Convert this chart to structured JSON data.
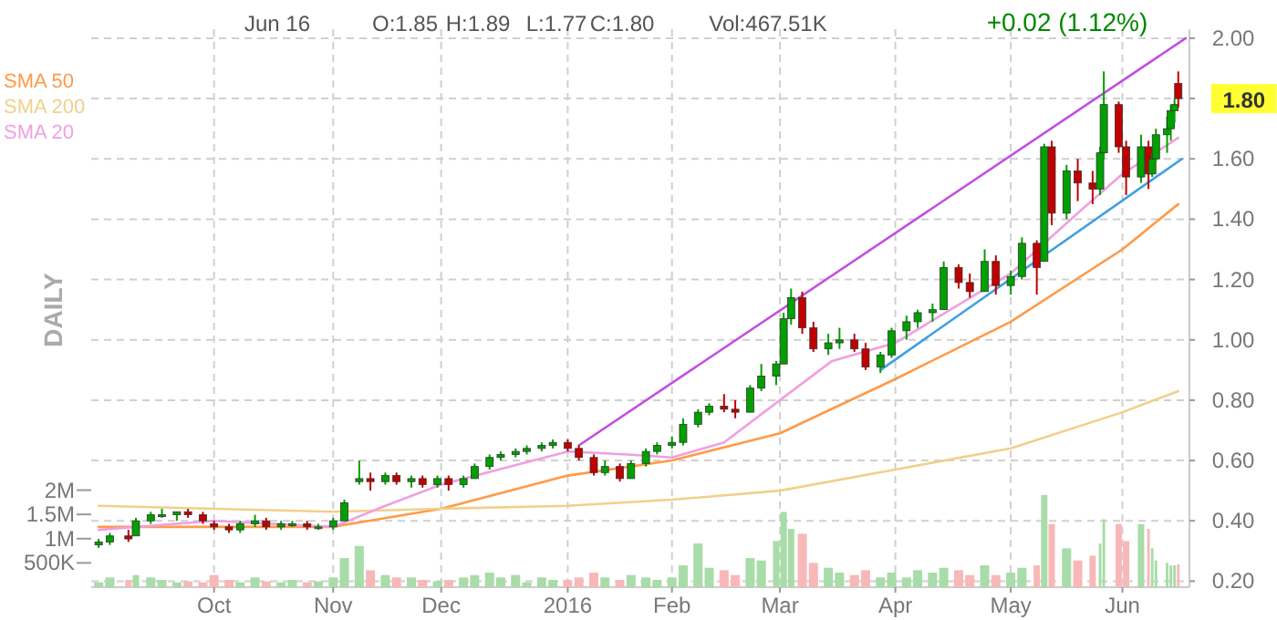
{
  "chart_data": {
    "type": "candlestick",
    "annotations": [
      "Jun 16",
      "O:1.85",
      "H:1.89",
      "L:1.77",
      "C:1.80",
      "Vol:467.51K",
      "+0.02 (1.12%)",
      "DAILY",
      {
        "text": "1.80",
        "x": "2016-06-16",
        "y": 1.8
      }
    ],
    "x": [
      "2015-08-31",
      "2015-09-03",
      "2015-09-08",
      "2015-09-10",
      "2015-09-14",
      "2015-09-17",
      "2015-09-21",
      "2015-09-24",
      "2015-09-28",
      "2015-10-01",
      "2015-10-05",
      "2015-10-08",
      "2015-10-12",
      "2015-10-15",
      "2015-10-19",
      "2015-10-22",
      "2015-10-26",
      "2015-10-29",
      "2015-11-02",
      "2015-11-05",
      "2015-11-09",
      "2015-11-12",
      "2015-11-16",
      "2015-11-19",
      "2015-11-23",
      "2015-11-26",
      "2015-11-30",
      "2015-12-03",
      "2015-12-07",
      "2015-12-10",
      "2015-12-14",
      "2015-12-17",
      "2015-12-21",
      "2015-12-24",
      "2015-12-28",
      "2015-12-31",
      "2016-01-04",
      "2016-01-07",
      "2016-01-11",
      "2016-01-14",
      "2016-01-18",
      "2016-01-21",
      "2016-01-25",
      "2016-01-28",
      "2016-02-01",
      "2016-02-04",
      "2016-02-08",
      "2016-02-11",
      "2016-02-15",
      "2016-02-18",
      "2016-02-22",
      "2016-02-25",
      "2016-02-29",
      "2016-03-02",
      "2016-03-04",
      "2016-03-07",
      "2016-03-10",
      "2016-03-14",
      "2016-03-17",
      "2016-03-21",
      "2016-03-24",
      "2016-03-28",
      "2016-03-31",
      "2016-04-04",
      "2016-04-07",
      "2016-04-11",
      "2016-04-14",
      "2016-04-18",
      "2016-04-21",
      "2016-04-25",
      "2016-04-28",
      "2016-05-02",
      "2016-05-05",
      "2016-05-09",
      "2016-05-11",
      "2016-05-13",
      "2016-05-17",
      "2016-05-20",
      "2016-05-24",
      "2016-05-26",
      "2016-05-27",
      "2016-05-31",
      "2016-06-02",
      "2016-06-06",
      "2016-06-08",
      "2016-06-09",
      "2016-06-10",
      "2016-06-13",
      "2016-06-14",
      "2016-06-15",
      "2016-06-16"
    ],
    "ohlc": [
      [
        0.32,
        0.34,
        0.31,
        0.33
      ],
      [
        0.33,
        0.36,
        0.32,
        0.35
      ],
      [
        0.35,
        0.37,
        0.33,
        0.34
      ],
      [
        0.35,
        0.41,
        0.35,
        0.4
      ],
      [
        0.4,
        0.43,
        0.39,
        0.42
      ],
      [
        0.42,
        0.44,
        0.41,
        0.42
      ],
      [
        0.42,
        0.43,
        0.4,
        0.43
      ],
      [
        0.43,
        0.44,
        0.41,
        0.42
      ],
      [
        0.42,
        0.43,
        0.39,
        0.4
      ],
      [
        0.39,
        0.4,
        0.37,
        0.38
      ],
      [
        0.38,
        0.39,
        0.36,
        0.37
      ],
      [
        0.37,
        0.4,
        0.36,
        0.39
      ],
      [
        0.39,
        0.42,
        0.38,
        0.4
      ],
      [
        0.4,
        0.41,
        0.37,
        0.38
      ],
      [
        0.38,
        0.4,
        0.37,
        0.39
      ],
      [
        0.39,
        0.4,
        0.38,
        0.39
      ],
      [
        0.39,
        0.4,
        0.37,
        0.38
      ],
      [
        0.38,
        0.39,
        0.37,
        0.38
      ],
      [
        0.38,
        0.41,
        0.37,
        0.4
      ],
      [
        0.4,
        0.47,
        0.4,
        0.46
      ],
      [
        0.53,
        0.6,
        0.52,
        0.54
      ],
      [
        0.54,
        0.56,
        0.5,
        0.53
      ],
      [
        0.53,
        0.56,
        0.52,
        0.55
      ],
      [
        0.55,
        0.56,
        0.52,
        0.53
      ],
      [
        0.53,
        0.55,
        0.51,
        0.54
      ],
      [
        0.54,
        0.55,
        0.51,
        0.52
      ],
      [
        0.52,
        0.55,
        0.51,
        0.54
      ],
      [
        0.54,
        0.55,
        0.5,
        0.52
      ],
      [
        0.52,
        0.55,
        0.51,
        0.54
      ],
      [
        0.54,
        0.59,
        0.54,
        0.58
      ],
      [
        0.58,
        0.62,
        0.57,
        0.61
      ],
      [
        0.61,
        0.63,
        0.6,
        0.62
      ],
      [
        0.62,
        0.64,
        0.61,
        0.63
      ],
      [
        0.63,
        0.65,
        0.62,
        0.64
      ],
      [
        0.64,
        0.66,
        0.63,
        0.65
      ],
      [
        0.65,
        0.67,
        0.64,
        0.66
      ],
      [
        0.66,
        0.67,
        0.63,
        0.64
      ],
      [
        0.64,
        0.65,
        0.6,
        0.61
      ],
      [
        0.61,
        0.62,
        0.55,
        0.56
      ],
      [
        0.56,
        0.6,
        0.55,
        0.58
      ],
      [
        0.58,
        0.59,
        0.53,
        0.54
      ],
      [
        0.54,
        0.6,
        0.54,
        0.59
      ],
      [
        0.59,
        0.64,
        0.58,
        0.63
      ],
      [
        0.63,
        0.66,
        0.62,
        0.65
      ],
      [
        0.65,
        0.68,
        0.64,
        0.66
      ],
      [
        0.66,
        0.74,
        0.65,
        0.72
      ],
      [
        0.72,
        0.77,
        0.71,
        0.76
      ],
      [
        0.76,
        0.79,
        0.75,
        0.78
      ],
      [
        0.78,
        0.82,
        0.76,
        0.77
      ],
      [
        0.77,
        0.8,
        0.74,
        0.76
      ],
      [
        0.76,
        0.85,
        0.76,
        0.84
      ],
      [
        0.84,
        0.92,
        0.83,
        0.88
      ],
      [
        0.88,
        0.93,
        0.85,
        0.92
      ],
      [
        0.92,
        1.09,
        0.92,
        1.07
      ],
      [
        1.07,
        1.17,
        1.05,
        1.14
      ],
      [
        1.14,
        1.16,
        1.02,
        1.04
      ],
      [
        1.04,
        1.06,
        0.96,
        0.97
      ],
      [
        0.97,
        1.02,
        0.95,
        0.99
      ],
      [
        0.99,
        1.04,
        0.97,
        1.0
      ],
      [
        1.0,
        1.02,
        0.96,
        0.97
      ],
      [
        0.97,
        0.99,
        0.9,
        0.91
      ],
      [
        0.91,
        0.96,
        0.89,
        0.95
      ],
      [
        0.95,
        1.04,
        0.94,
        1.03
      ],
      [
        1.03,
        1.08,
        1.0,
        1.06
      ],
      [
        1.06,
        1.1,
        1.04,
        1.09
      ],
      [
        1.09,
        1.12,
        1.06,
        1.1
      ],
      [
        1.1,
        1.26,
        1.1,
        1.24
      ],
      [
        1.24,
        1.25,
        1.17,
        1.19
      ],
      [
        1.19,
        1.22,
        1.14,
        1.16
      ],
      [
        1.16,
        1.3,
        1.16,
        1.26
      ],
      [
        1.26,
        1.28,
        1.15,
        1.18
      ],
      [
        1.18,
        1.23,
        1.15,
        1.21
      ],
      [
        1.21,
        1.34,
        1.2,
        1.32
      ],
      [
        1.32,
        1.33,
        1.15,
        1.24
      ],
      [
        1.26,
        1.65,
        1.26,
        1.64
      ],
      [
        1.64,
        1.66,
        1.38,
        1.42
      ],
      [
        1.42,
        1.58,
        1.4,
        1.56
      ],
      [
        1.56,
        1.6,
        1.46,
        1.52
      ],
      [
        1.52,
        1.56,
        1.45,
        1.5
      ],
      [
        1.5,
        1.64,
        1.48,
        1.62
      ],
      [
        1.62,
        1.89,
        1.6,
        1.78
      ],
      [
        1.78,
        1.79,
        1.62,
        1.64
      ],
      [
        1.64,
        1.66,
        1.48,
        1.54
      ],
      [
        1.54,
        1.68,
        1.52,
        1.64
      ],
      [
        1.64,
        1.66,
        1.5,
        1.55
      ],
      [
        1.55,
        1.62,
        1.54,
        1.6
      ],
      [
        1.6,
        1.7,
        1.59,
        1.68
      ],
      [
        1.68,
        1.74,
        1.62,
        1.7
      ],
      [
        1.7,
        1.78,
        1.66,
        1.76
      ],
      [
        1.76,
        1.8,
        1.72,
        1.78
      ],
      [
        1.85,
        1.89,
        1.77,
        1.8
      ]
    ],
    "series": [
      {
        "type": "bar",
        "axis": "y2",
        "values": [
          100000,
          200000,
          150000,
          250000,
          200000,
          150000,
          100000,
          120000,
          100000,
          250000,
          150000,
          100000,
          200000,
          120000,
          100000,
          150000,
          100000,
          120000,
          200000,
          600000,
          850000,
          350000,
          250000,
          200000,
          200000,
          150000,
          120000,
          150000,
          200000,
          250000,
          300000,
          200000,
          250000,
          100000,
          200000,
          150000,
          150000,
          200000,
          300000,
          200000,
          150000,
          250000,
          200000,
          150000,
          200000,
          450000,
          900000,
          400000,
          350000,
          250000,
          600000,
          550000,
          950000,
          1550000,
          1200000,
          1100000,
          500000,
          400000,
          300000,
          250000,
          350000,
          200000,
          300000,
          200000,
          350000,
          300000,
          400000,
          350000,
          250000,
          450000,
          250000,
          300000,
          400000,
          450000,
          1900000,
          1300000,
          800000,
          550000,
          650000,
          900000,
          1400000,
          1300000,
          950000,
          1300000,
          1200000,
          800000,
          550000,
          500000,
          450000,
          450000,
          470000
        ],
        "colors": [
          "#a8dca8",
          "#a8dca8",
          "#f8b8b8",
          "#a8dca8",
          "#a8dca8",
          "#a8dca8",
          "#a8dca8",
          "#f8b8b8",
          "#f8b8b8",
          "#f8b8b8",
          "#f8b8b8",
          "#a8dca8",
          "#a8dca8",
          "#f8b8b8",
          "#a8dca8",
          "#a8dca8",
          "#f8b8b8",
          "#a8dca8",
          "#a8dca8",
          "#a8dca8",
          "#a8dca8",
          "#f8b8b8",
          "#a8dca8",
          "#f8b8b8",
          "#a8dca8",
          "#f8b8b8",
          "#a8dca8",
          "#f8b8b8",
          "#a8dca8",
          "#a8dca8",
          "#a8dca8",
          "#a8dca8",
          "#a8dca8",
          "#a8dca8",
          "#a8dca8",
          "#a8dca8",
          "#f8b8b8",
          "#f8b8b8",
          "#f8b8b8",
          "#a8dca8",
          "#f8b8b8",
          "#a8dca8",
          "#a8dca8",
          "#a8dca8",
          "#a8dca8",
          "#a8dca8",
          "#a8dca8",
          "#a8dca8",
          "#f8b8b8",
          "#f8b8b8",
          "#a8dca8",
          "#a8dca8",
          "#a8dca8",
          "#a8dca8",
          "#a8dca8",
          "#f8b8b8",
          "#f8b8b8",
          "#a8dca8",
          "#a8dca8",
          "#f8b8b8",
          "#f8b8b8",
          "#a8dca8",
          "#a8dca8",
          "#a8dca8",
          "#a8dca8",
          "#a8dca8",
          "#a8dca8",
          "#f8b8b8",
          "#f8b8b8",
          "#a8dca8",
          "#f8b8b8",
          "#a8dca8",
          "#a8dca8",
          "#f8b8b8",
          "#a8dca8",
          "#f8b8b8",
          "#a8dca8",
          "#f8b8b8",
          "#f8b8b8",
          "#a8dca8",
          "#a8dca8",
          "#f8b8b8",
          "#f8b8b8",
          "#a8dca8",
          "#f8b8b8",
          "#a8dca8",
          "#a8dca8",
          "#a8dca8",
          "#a8dca8",
          "#a8dca8",
          "#f8b8b8"
        ]
      },
      {
        "type": "line",
        "name": "SMA 50",
        "color": "#ff9a48",
        "x": [
          "2015-08-31",
          "2015-10-01",
          "2015-11-02",
          "2015-12-01",
          "2016-01-04",
          "2016-02-01",
          "2016-03-01",
          "2016-04-01",
          "2016-05-02",
          "2016-06-01",
          "2016-06-16"
        ],
        "values": [
          0.38,
          0.38,
          0.38,
          0.44,
          0.55,
          0.6,
          0.69,
          0.87,
          1.06,
          1.3,
          1.45
        ]
      },
      {
        "type": "line",
        "name": "SMA 200",
        "color": "#f0d08c",
        "x": [
          "2015-08-31",
          "2015-10-01",
          "2015-11-02",
          "2015-12-01",
          "2016-01-04",
          "2016-02-01",
          "2016-03-01",
          "2016-04-01",
          "2016-05-02",
          "2016-06-01",
          "2016-06-16"
        ],
        "values": [
          0.45,
          0.44,
          0.43,
          0.44,
          0.45,
          0.47,
          0.5,
          0.57,
          0.64,
          0.76,
          0.83
        ]
      },
      {
        "type": "line",
        "name": "SMA 20",
        "color": "#f0a0e0",
        "x": [
          "2015-08-31",
          "2015-10-01",
          "2015-11-02",
          "2015-11-16",
          "2015-12-01",
          "2016-01-04",
          "2016-01-20",
          "2016-02-01",
          "2016-02-15",
          "2016-03-01",
          "2016-03-15",
          "2016-04-01",
          "2016-05-02",
          "2016-05-20",
          "2016-06-01",
          "2016-06-16"
        ],
        "values": [
          0.37,
          0.4,
          0.38,
          0.45,
          0.52,
          0.63,
          0.62,
          0.61,
          0.66,
          0.8,
          0.93,
          0.99,
          1.22,
          1.42,
          1.55,
          1.67
        ]
      },
      {
        "type": "line",
        "color": "#c050e0",
        "x": [
          "2016-01-07",
          "2016-06-18"
        ],
        "values": [
          0.65,
          2.0
        ]
      },
      {
        "type": "line",
        "color": "#40a0e0",
        "x": [
          "2016-03-28",
          "2016-06-17"
        ],
        "values": [
          0.9,
          1.6
        ]
      }
    ],
    "xlim": [
      "2015-08-29",
      "2016-06-19"
    ],
    "xticks": [
      {
        "value": "2015-10-01",
        "label": "Oct"
      },
      {
        "value": "2015-11-02",
        "label": "Nov"
      },
      {
        "value": "2015-12-01",
        "label": "Dec"
      },
      {
        "value": "2016-01-04",
        "label": "2016"
      },
      {
        "value": "2016-02-01",
        "label": "Feb"
      },
      {
        "value": "2016-03-01",
        "label": "Mar"
      },
      {
        "value": "2016-04-01",
        "label": "Apr"
      },
      {
        "value": "2016-05-02",
        "label": "May"
      },
      {
        "value": "2016-06-01",
        "label": "Jun"
      }
    ],
    "ylim": [
      0.18,
      2.03
    ],
    "yticks": [
      {
        "value": 0.2,
        "label": "0.20"
      },
      {
        "value": 0.4,
        "label": "0.40"
      },
      {
        "value": 0.6,
        "label": "0.60"
      },
      {
        "value": 0.8,
        "label": "0.80"
      },
      {
        "value": 1.0,
        "label": "1.00"
      },
      {
        "value": 1.2,
        "label": "1.20"
      },
      {
        "value": 1.4,
        "label": "1.40"
      },
      {
        "value": 1.6,
        "label": "1.60"
      },
      {
        "value": 1.8,
        "label": null
      },
      {
        "value": 2.0,
        "label": "2.00"
      }
    ],
    "y2lim": [
      0,
      11500000
    ],
    "y2ticks": [
      {
        "value": 500000,
        "label": "500K"
      },
      {
        "value": 1000000,
        "label": "1M"
      },
      {
        "value": 1500000,
        "label": "1.5M"
      },
      {
        "value": 2000000,
        "label": "2M"
      }
    ],
    "grid": true,
    "legend": "top left"
  }
}
